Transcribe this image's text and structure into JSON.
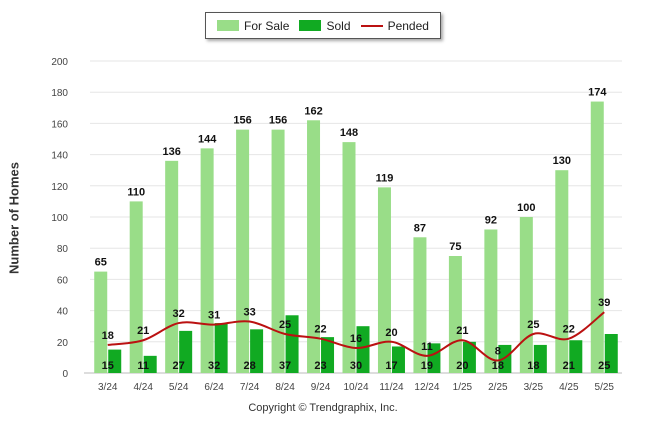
{
  "colors": {
    "for_sale": "#99dd88",
    "sold": "#11aa22",
    "pended": "#bb1111"
  },
  "legend": {
    "for_sale": "For Sale",
    "sold": "Sold",
    "pended": "Pended"
  },
  "footer": "Copyright © Trendgraphix, Inc.",
  "chart_data": {
    "type": "bar",
    "title": "",
    "xlabel": "",
    "ylabel": "Number of Homes",
    "ylim": [
      0,
      200
    ],
    "yticks": [
      0,
      20,
      40,
      60,
      80,
      100,
      120,
      140,
      160,
      180,
      200
    ],
    "grid": true,
    "legend_position": "top-center",
    "categories": [
      "3/24",
      "4/24",
      "5/24",
      "6/24",
      "7/24",
      "8/24",
      "9/24",
      "10/24",
      "11/24",
      "12/24",
      "1/25",
      "2/25",
      "3/25",
      "4/25",
      "5/25"
    ],
    "series": [
      {
        "name": "For Sale",
        "type": "bar",
        "values": [
          65,
          110,
          136,
          144,
          156,
          156,
          162,
          148,
          119,
          87,
          75,
          92,
          100,
          130,
          174
        ]
      },
      {
        "name": "Sold",
        "type": "bar",
        "values": [
          15,
          11,
          27,
          32,
          28,
          37,
          23,
          30,
          17,
          19,
          20,
          18,
          18,
          21,
          25
        ]
      },
      {
        "name": "Pended",
        "type": "line",
        "values": [
          18,
          21,
          32,
          31,
          33,
          25,
          22,
          16,
          20,
          11,
          21,
          8,
          25,
          22,
          39
        ]
      }
    ]
  }
}
